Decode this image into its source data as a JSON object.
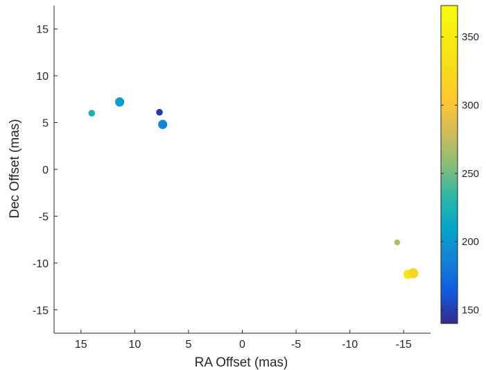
{
  "chart_data": {
    "type": "scatter",
    "title": "",
    "xlabel": "RA Offset (mas)",
    "ylabel": "Dec Offset (mas)",
    "xlim": [
      17.5,
      -17.5
    ],
    "ylim": [
      -17.5,
      17.5
    ],
    "x_ticks": [
      15,
      10,
      5,
      0,
      -5,
      -10,
      -15
    ],
    "y_ticks": [
      15,
      10,
      5,
      0,
      -5,
      -10,
      -15
    ],
    "grid": false,
    "colormap": "parula",
    "colorbar": {
      "range": [
        140,
        373
      ],
      "ticks": [
        150,
        200,
        250,
        300,
        350
      ]
    },
    "points": [
      {
        "x": 14.0,
        "y": 6.0,
        "value": 222,
        "size": 3
      },
      {
        "x": 11.4,
        "y": 7.2,
        "value": 205,
        "size": 6
      },
      {
        "x": 7.7,
        "y": 6.1,
        "value": 148,
        "size": 3
      },
      {
        "x": 7.4,
        "y": 4.8,
        "value": 190,
        "size": 6
      },
      {
        "x": -14.4,
        "y": -7.8,
        "value": 270,
        "size": 2
      },
      {
        "x": -15.4,
        "y": -11.2,
        "value": 345,
        "size": 6
      },
      {
        "x": -15.9,
        "y": -11.1,
        "value": 318,
        "size": 7
      }
    ]
  }
}
